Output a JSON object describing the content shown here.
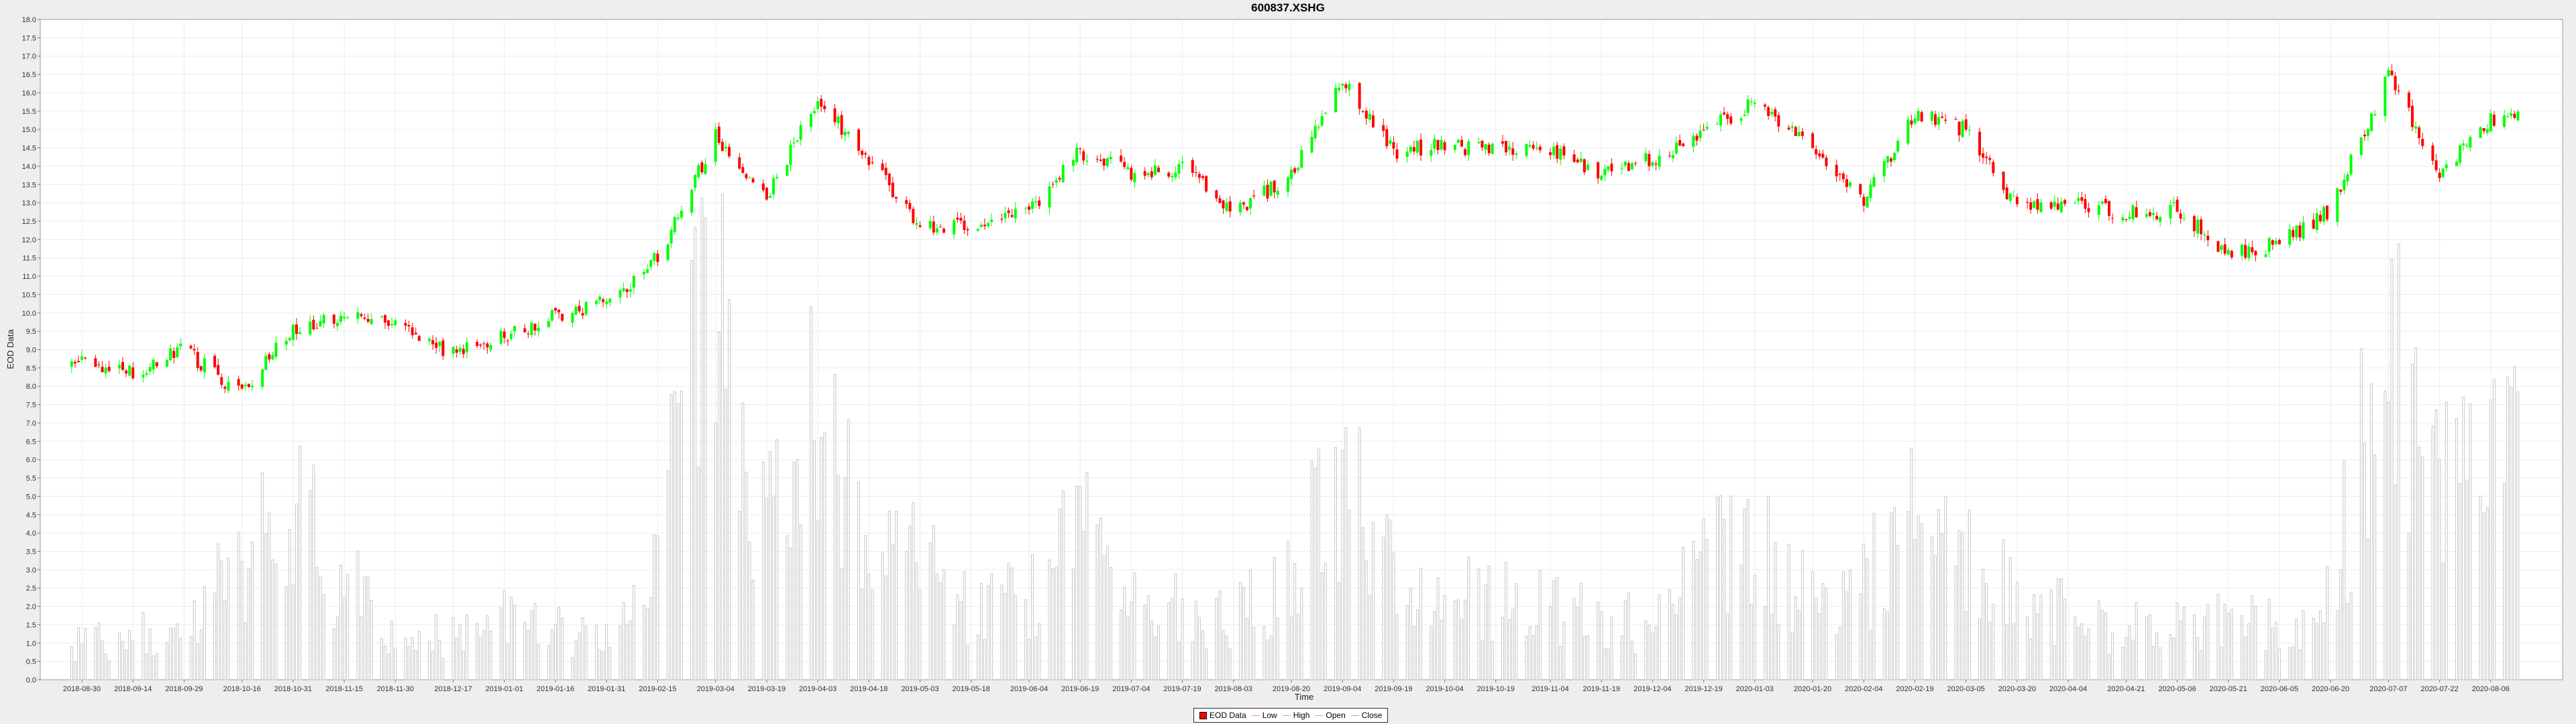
{
  "chart_data": {
    "type": "candlestick",
    "title": "600837.XSHG",
    "xlabel": "Time",
    "ylabel": "EOD Data",
    "ylim": [
      0,
      18
    ],
    "yticks": [
      "0.0",
      "0.5",
      "1.0",
      "1.5",
      "2.0",
      "2.5",
      "3.0",
      "3.5",
      "4.0",
      "4.5",
      "5.0",
      "5.5",
      "6.0",
      "6.5",
      "7.0",
      "7.5",
      "8.0",
      "8.5",
      "9.0",
      "9.5",
      "10.0",
      "10.5",
      "11.0",
      "11.5",
      "12.0",
      "12.5",
      "13.0",
      "13.5",
      "14.0",
      "14.5",
      "15.0",
      "15.5",
      "16.0",
      "16.5",
      "17.0",
      "17.5",
      "18.0"
    ],
    "xticks": [
      "2018-08-30",
      "2018-09-14",
      "2018-09-29",
      "2018-10-16",
      "2018-10-31",
      "2018-11-15",
      "2018-11-30",
      "2018-12-17",
      "2019-01-01",
      "2019-01-16",
      "2019-01-31",
      "2019-02-15",
      "2019-03-04",
      "2019-03-19",
      "2019-04-03",
      "2019-04-18",
      "2019-05-03",
      "2019-05-18",
      "2019-06-04",
      "2019-06-19",
      "2019-07-04",
      "2019-07-19",
      "2019-08-03",
      "2019-08-20",
      "2019-09-04",
      "2019-09-19",
      "2019-10-04",
      "2019-10-19",
      "2019-11-04",
      "2019-11-19",
      "2019-12-04",
      "2019-12-19",
      "2020-01-03",
      "2020-01-20",
      "2020-02-04",
      "2020-02-19",
      "2020-03-05",
      "2020-03-20",
      "2020-04-04",
      "2020-04-21",
      "2020-05-06",
      "2020-05-21",
      "2020-06-05",
      "2020-06-20",
      "2020-07-07",
      "2020-07-22",
      "2020-08-06"
    ],
    "legend": [
      "EOD Data",
      "Low",
      "High",
      "Open",
      "Close"
    ],
    "legend_position": "bottom",
    "grid": true,
    "close_series": [
      {
        "x": "2018-08-30",
        "close": 8.6
      },
      {
        "x": "2018-09-14",
        "close": 8.4
      },
      {
        "x": "2018-09-29",
        "close": 9.0
      },
      {
        "x": "2018-10-16",
        "close": 7.8
      },
      {
        "x": "2018-10-31",
        "close": 9.6
      },
      {
        "x": "2018-11-15",
        "close": 9.9
      },
      {
        "x": "2018-11-30",
        "close": 9.7
      },
      {
        "x": "2018-12-17",
        "close": 8.9
      },
      {
        "x": "2019-01-01",
        "close": 9.4
      },
      {
        "x": "2019-01-16",
        "close": 9.9
      },
      {
        "x": "2019-01-31",
        "close": 10.3
      },
      {
        "x": "2019-02-15",
        "close": 11.5
      },
      {
        "x": "2019-03-04",
        "close": 14.8
      },
      {
        "x": "2019-03-19",
        "close": 13.2
      },
      {
        "x": "2019-04-03",
        "close": 15.8
      },
      {
        "x": "2019-04-18",
        "close": 14.2
      },
      {
        "x": "2019-05-03",
        "close": 12.4
      },
      {
        "x": "2019-05-18",
        "close": 12.3
      },
      {
        "x": "2019-06-04",
        "close": 12.8
      },
      {
        "x": "2019-06-19",
        "close": 14.4
      },
      {
        "x": "2019-07-04",
        "close": 13.8
      },
      {
        "x": "2019-07-19",
        "close": 13.9
      },
      {
        "x": "2019-08-03",
        "close": 12.8
      },
      {
        "x": "2019-08-20",
        "close": 13.7
      },
      {
        "x": "2019-09-04",
        "close": 16.4
      },
      {
        "x": "2019-09-19",
        "close": 14.4
      },
      {
        "x": "2019-10-04",
        "close": 14.6
      },
      {
        "x": "2019-10-19",
        "close": 14.4
      },
      {
        "x": "2019-11-04",
        "close": 14.5
      },
      {
        "x": "2019-11-19",
        "close": 13.8
      },
      {
        "x": "2019-12-04",
        "close": 14.2
      },
      {
        "x": "2019-12-19",
        "close": 15.0
      },
      {
        "x": "2020-01-03",
        "close": 15.7
      },
      {
        "x": "2020-01-20",
        "close": 14.6
      },
      {
        "x": "2020-02-04",
        "close": 13.0
      },
      {
        "x": "2020-02-19",
        "close": 15.4
      },
      {
        "x": "2020-03-05",
        "close": 15.0
      },
      {
        "x": "2020-03-20",
        "close": 12.9
      },
      {
        "x": "2020-04-04",
        "close": 13.0
      },
      {
        "x": "2020-04-21",
        "close": 12.7
      },
      {
        "x": "2020-05-06",
        "close": 12.8
      },
      {
        "x": "2020-05-21",
        "close": 11.6
      },
      {
        "x": "2020-06-05",
        "close": 11.9
      },
      {
        "x": "2020-06-20",
        "close": 12.8
      },
      {
        "x": "2020-07-07",
        "close": 16.5
      },
      {
        "x": "2020-07-22",
        "close": 13.8
      },
      {
        "x": "2020-08-06",
        "close": 15.3
      }
    ],
    "volume_series": [
      {
        "x": "2018-08-30",
        "volume": 1.0
      },
      {
        "x": "2018-09-14",
        "volume": 1.2
      },
      {
        "x": "2018-09-29",
        "volume": 1.3
      },
      {
        "x": "2018-10-16",
        "volume": 3.2
      },
      {
        "x": "2018-10-31",
        "volume": 4.6
      },
      {
        "x": "2018-11-15",
        "volume": 2.6
      },
      {
        "x": "2018-11-30",
        "volume": 1.4
      },
      {
        "x": "2018-12-17",
        "volume": 1.1
      },
      {
        "x": "2019-01-01",
        "volume": 1.6
      },
      {
        "x": "2019-01-16",
        "volume": 1.4
      },
      {
        "x": "2019-01-31",
        "volume": 1.0
      },
      {
        "x": "2019-02-15",
        "volume": 3.6
      },
      {
        "x": "2019-03-04",
        "volume": 10.5
      },
      {
        "x": "2019-03-19",
        "volume": 4.0
      },
      {
        "x": "2019-04-03",
        "volume": 7.6
      },
      {
        "x": "2019-04-18",
        "volume": 3.4
      },
      {
        "x": "2019-05-03",
        "volume": 3.2
      },
      {
        "x": "2019-05-18",
        "volume": 1.8
      },
      {
        "x": "2019-06-04",
        "volume": 2.2
      },
      {
        "x": "2019-06-19",
        "volume": 4.2
      },
      {
        "x": "2019-07-04",
        "volume": 2.0
      },
      {
        "x": "2019-07-19",
        "volume": 1.9
      },
      {
        "x": "2019-08-03",
        "volume": 1.8
      },
      {
        "x": "2019-08-20",
        "volume": 2.6
      },
      {
        "x": "2019-09-04",
        "volume": 6.0
      },
      {
        "x": "2019-09-19",
        "volume": 2.8
      },
      {
        "x": "2019-10-04",
        "volume": 2.4
      },
      {
        "x": "2019-10-19",
        "volume": 2.2
      },
      {
        "x": "2019-11-04",
        "volume": 2.0
      },
      {
        "x": "2019-11-19",
        "volume": 1.5
      },
      {
        "x": "2019-12-04",
        "volume": 1.6
      },
      {
        "x": "2019-12-19",
        "volume": 3.4
      },
      {
        "x": "2020-01-03",
        "volume": 3.6
      },
      {
        "x": "2020-01-20",
        "volume": 2.4
      },
      {
        "x": "2020-02-04",
        "volume": 2.6
      },
      {
        "x": "2020-02-19",
        "volume": 4.4
      },
      {
        "x": "2020-03-05",
        "volume": 4.0
      },
      {
        "x": "2020-03-20",
        "volume": 2.2
      },
      {
        "x": "2020-04-04",
        "volume": 1.8
      },
      {
        "x": "2020-04-21",
        "volume": 1.4
      },
      {
        "x": "2020-05-06",
        "volume": 1.5
      },
      {
        "x": "2020-05-21",
        "volume": 1.6
      },
      {
        "x": "2020-06-05",
        "volume": 1.4
      },
      {
        "x": "2020-06-20",
        "volume": 2.4
      },
      {
        "x": "2020-07-07",
        "volume": 9.0
      },
      {
        "x": "2020-07-22",
        "volume": 4.8
      },
      {
        "x": "2020-08-06",
        "volume": 5.6
      }
    ],
    "colors": {
      "up": "#00ff00",
      "down": "#ff0000",
      "volume": "#c8c8c8",
      "plot_bg": "#ffffff",
      "grid": "#ececec"
    }
  }
}
